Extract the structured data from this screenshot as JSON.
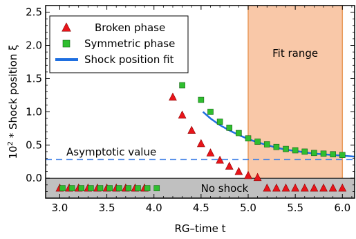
{
  "chart_data": {
    "type": "scatter",
    "xlabel": "RG–time t",
    "ylabel_parts": {
      "base": "10",
      "exp": "2",
      "rest": " * Shock position ξ"
    },
    "xlim": [
      2.85,
      6.13
    ],
    "ylim": [
      -0.3,
      2.6
    ],
    "x_ticks": [
      3.0,
      3.5,
      4.0,
      4.5,
      5.0,
      5.5,
      6.0
    ],
    "x_tick_labels": [
      "3.0",
      "3.5",
      "4.0",
      "4.5",
      "5.0",
      "5.5",
      "6.0"
    ],
    "y_ticks": [
      0.0,
      0.5,
      1.0,
      1.5,
      2.0,
      2.5
    ],
    "y_tick_labels": [
      "0.0",
      "0.5",
      "1.0",
      "1.5",
      "2.0",
      "2.5"
    ],
    "grid": false,
    "legend_position": "top-left",
    "legend": [
      {
        "label": "Broken phase",
        "marker": "triangle"
      },
      {
        "label": "Symmetric phase",
        "marker": "square"
      },
      {
        "label": "Shock position fit",
        "marker": "line"
      }
    ],
    "colors": {
      "broken": "#e8141a",
      "symmetric": "#2fbe2f",
      "fit": "#1f6fe0",
      "fit_range": "#f9c8a8",
      "fit_range_edge": "#e99b5c",
      "no_shock_band": "#c0c0c0",
      "asymptote": "#3d7fe6"
    },
    "no_shock": {
      "label": "No shock",
      "y_range": [
        -0.3,
        0.0
      ],
      "marker_y": -0.15
    },
    "fit_range": {
      "label": "Fit range",
      "x_range": [
        5.0,
        6.0
      ]
    },
    "asymptote": {
      "label": "Asymptotic value",
      "y": 0.28
    },
    "broken_phase": {
      "points": [
        [
          4.2,
          1.22
        ],
        [
          4.3,
          0.95
        ],
        [
          4.4,
          0.72
        ],
        [
          4.5,
          0.52
        ],
        [
          4.6,
          0.38
        ],
        [
          4.7,
          0.27
        ],
        [
          4.8,
          0.18
        ],
        [
          4.9,
          0.1
        ],
        [
          5.0,
          0.04
        ],
        [
          5.1,
          0.01
        ]
      ],
      "no_shock_x": [
        3.0,
        3.1,
        3.2,
        3.3,
        3.4,
        3.5,
        3.6,
        3.7,
        3.8,
        3.9,
        5.2,
        5.3,
        5.4,
        5.5,
        5.6,
        5.7,
        5.8,
        5.9,
        6.0
      ]
    },
    "symmetric_phase": {
      "points": [
        [
          4.3,
          1.4
        ],
        [
          4.5,
          1.18
        ],
        [
          4.6,
          1.0
        ],
        [
          4.7,
          0.85
        ],
        [
          4.8,
          0.76
        ],
        [
          4.9,
          0.68
        ],
        [
          5.0,
          0.6
        ],
        [
          5.1,
          0.55
        ],
        [
          5.2,
          0.51
        ],
        [
          5.3,
          0.47
        ],
        [
          5.4,
          0.44
        ],
        [
          5.5,
          0.42
        ],
        [
          5.6,
          0.4
        ],
        [
          5.7,
          0.38
        ],
        [
          5.8,
          0.37
        ],
        [
          5.9,
          0.36
        ],
        [
          6.0,
          0.35
        ]
      ],
      "no_shock_x": [
        3.0,
        3.1,
        3.2,
        3.3,
        3.4,
        3.5,
        3.6,
        3.7,
        3.8,
        3.9,
        4.0
      ]
    },
    "fit_curve": {
      "points": [
        [
          4.52,
          1.0
        ],
        [
          4.6,
          0.9
        ],
        [
          4.7,
          0.8
        ],
        [
          4.8,
          0.72
        ],
        [
          4.9,
          0.65
        ],
        [
          5.0,
          0.59
        ],
        [
          5.1,
          0.54
        ],
        [
          5.2,
          0.5
        ],
        [
          5.3,
          0.46
        ],
        [
          5.4,
          0.43
        ],
        [
          5.5,
          0.41
        ],
        [
          5.6,
          0.39
        ],
        [
          5.7,
          0.37
        ],
        [
          5.8,
          0.36
        ],
        [
          5.9,
          0.35
        ],
        [
          6.0,
          0.34
        ],
        [
          6.13,
          0.325
        ]
      ]
    }
  }
}
